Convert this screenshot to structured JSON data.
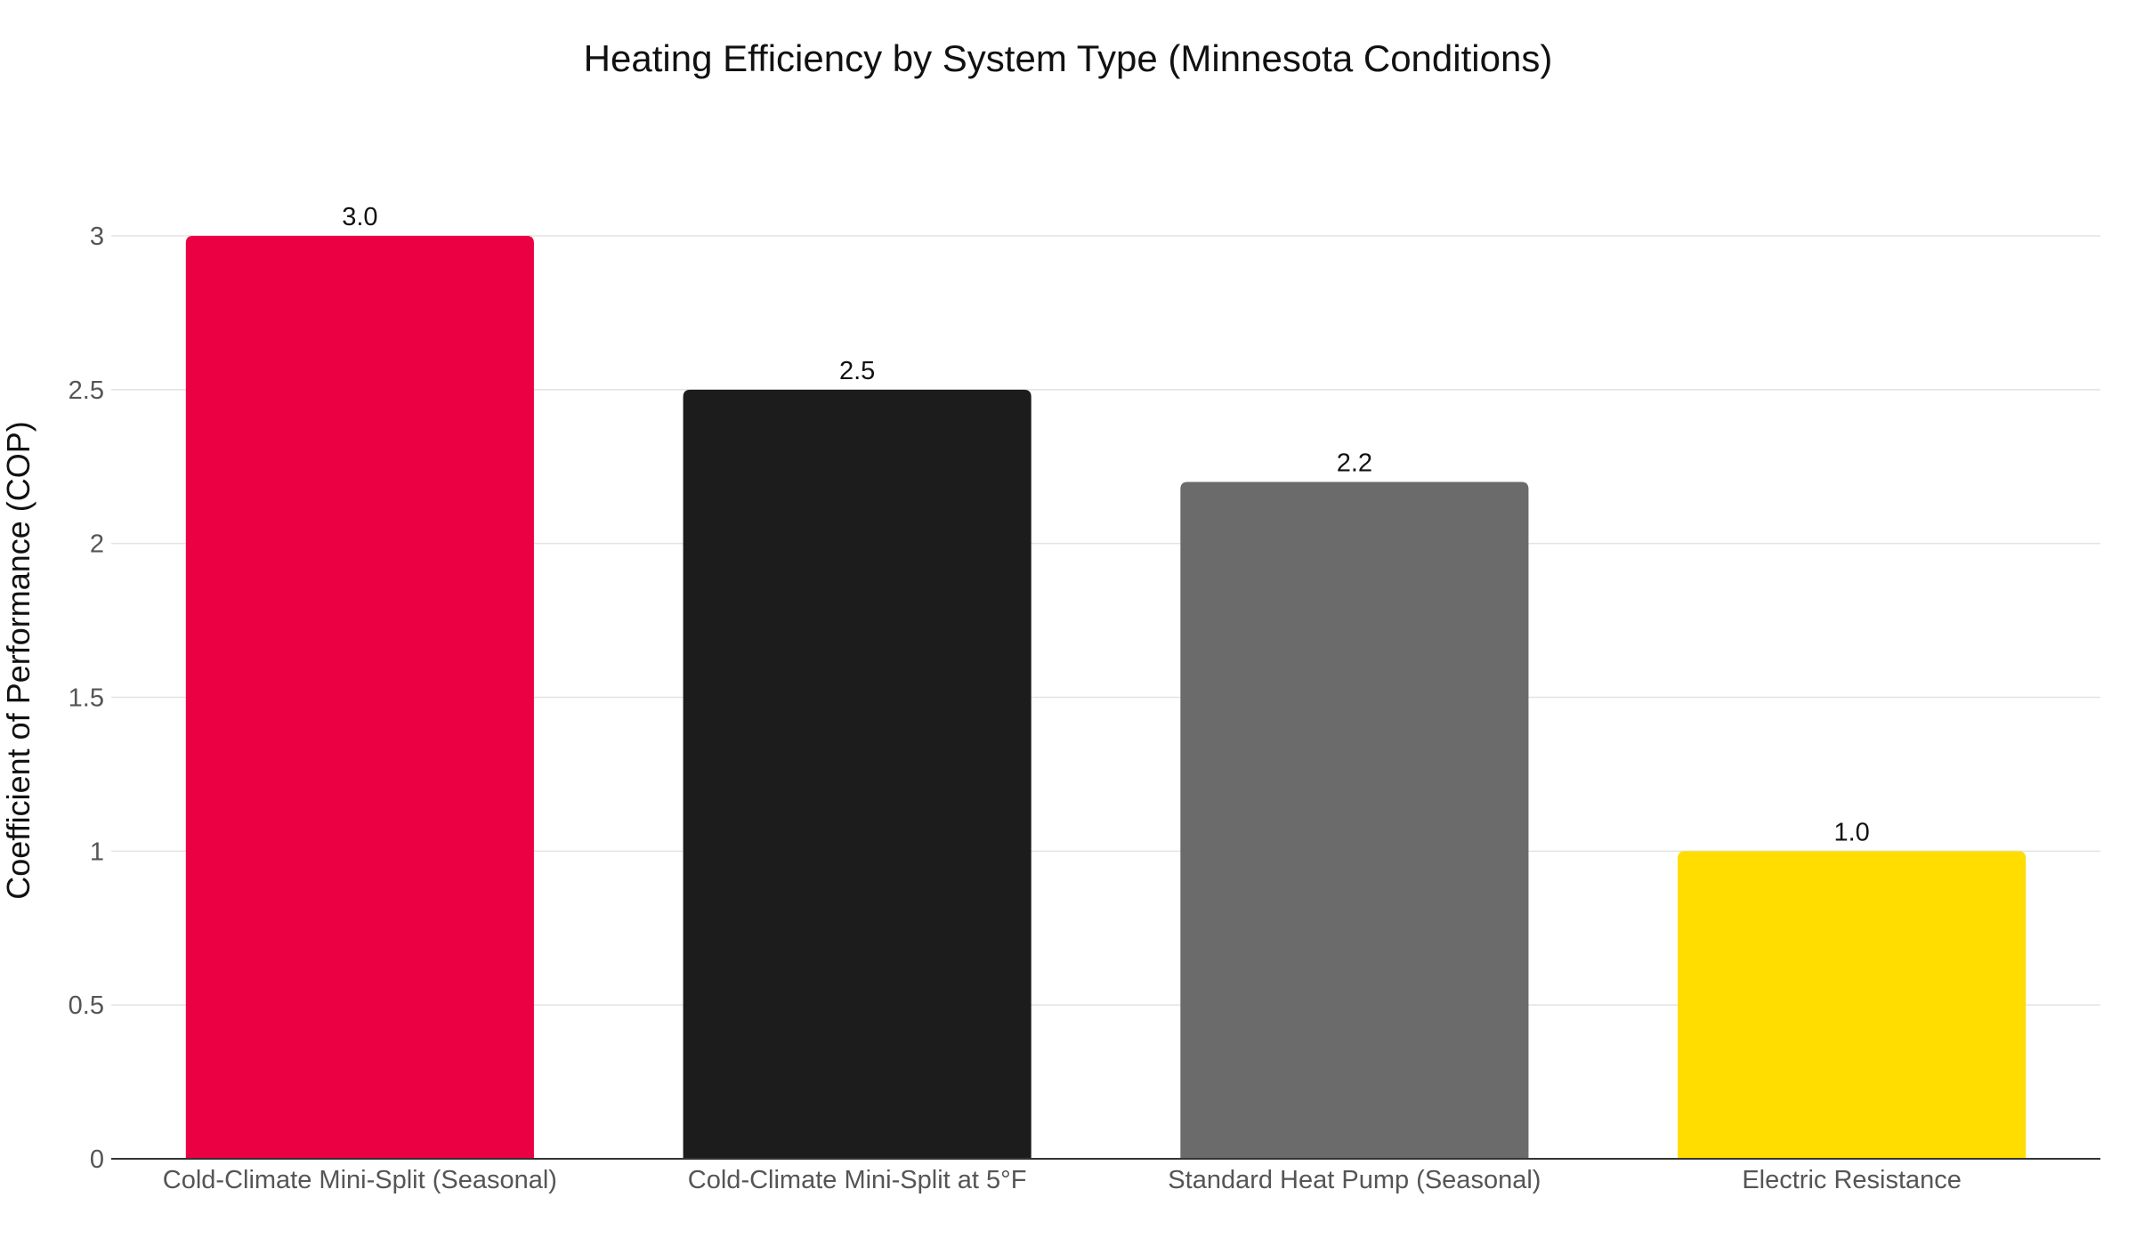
{
  "chart_data": {
    "type": "bar",
    "title": "Heating Efficiency by System Type (Minnesota Conditions)",
    "xlabel": "",
    "ylabel": "Coefficient of Performance (COP)",
    "categories": [
      "Cold-Climate Mini-Split (Seasonal)",
      "Cold-Climate Mini-Split at 5°F",
      "Standard Heat Pump (Seasonal)",
      "Electric Resistance"
    ],
    "values": [
      3.0,
      2.5,
      2.2,
      1.0
    ],
    "value_labels": [
      "3.0",
      "2.5",
      "2.2",
      "1.0"
    ],
    "colors": [
      "#EC0044",
      "#1C1C1C",
      "#6B6B6B",
      "#FFDD00"
    ],
    "ylim": [
      0,
      3
    ],
    "yticks": [
      0,
      0.5,
      1,
      1.5,
      2,
      2.5,
      3
    ],
    "ytick_labels": [
      "0",
      "0.5",
      "1",
      "1.5",
      "2",
      "2.5",
      "3"
    ],
    "grid": true,
    "legend": "none"
  }
}
